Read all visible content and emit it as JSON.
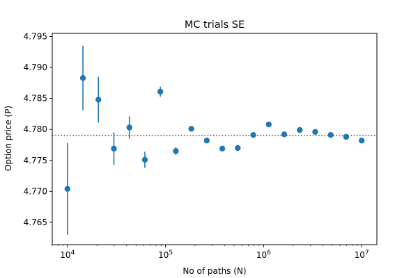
{
  "chart_data": {
    "type": "scatter",
    "title": "MC trials SE",
    "xlabel": "No of paths (N)",
    "ylabel": "Option price (P)",
    "xscale": "log",
    "xlim": [
      7000,
      14300000
    ],
    "ylim": [
      4.7614,
      4.7955
    ],
    "x_ticks": [
      {
        "value": 10000,
        "base": "10",
        "exp": "4"
      },
      {
        "value": 100000,
        "base": "10",
        "exp": "5"
      },
      {
        "value": 1000000,
        "base": "10",
        "exp": "6"
      },
      {
        "value": 10000000,
        "base": "10",
        "exp": "7"
      }
    ],
    "y_ticks": [
      "4.765",
      "4.770",
      "4.775",
      "4.780",
      "4.785",
      "4.790",
      "4.795"
    ],
    "grid": false,
    "reference_line": {
      "y": 4.779,
      "color": "#d62728",
      "style": "dotted"
    },
    "series": [
      {
        "color": "#1f77b4",
        "points": [
          {
            "x": 10000,
            "y": 4.7704,
            "err": 0.0074
          },
          {
            "x": 14384,
            "y": 4.7883,
            "err": 0.0052
          },
          {
            "x": 20691,
            "y": 4.7848,
            "err": 0.0037
          },
          {
            "x": 29764,
            "y": 4.7769,
            "err": 0.0026
          },
          {
            "x": 42813,
            "y": 4.7803,
            "err": 0.0018
          },
          {
            "x": 61585,
            "y": 4.7751,
            "err": 0.0013
          },
          {
            "x": 88587,
            "y": 4.7861,
            "err": 0.0008
          },
          {
            "x": 127427,
            "y": 4.7765,
            "err": 0.0006
          },
          {
            "x": 183298,
            "y": 4.7801,
            "err": 0.0004
          },
          {
            "x": 263665,
            "y": 4.7782,
            "err": 0.0003
          },
          {
            "x": 379269,
            "y": 4.7769,
            "err": 0.0002
          },
          {
            "x": 545559,
            "y": 4.777,
            "err": 0.0002
          },
          {
            "x": 784760,
            "y": 4.7791,
            "err": 0.0001
          },
          {
            "x": 1128838,
            "y": 4.7808,
            "err": 0.0001
          },
          {
            "x": 1623777,
            "y": 4.7792,
            "err": 0.0001
          },
          {
            "x": 2335721,
            "y": 4.7799,
            "err": 0.0001
          },
          {
            "x": 3359818,
            "y": 4.7796,
            "err": 0.0001
          },
          {
            "x": 4832930,
            "y": 4.7791,
            "err": 0.0001
          },
          {
            "x": 6951928,
            "y": 4.7788,
            "err": 0.0001
          },
          {
            "x": 10000000,
            "y": 4.7782,
            "err": 0.0001
          }
        ]
      }
    ]
  }
}
